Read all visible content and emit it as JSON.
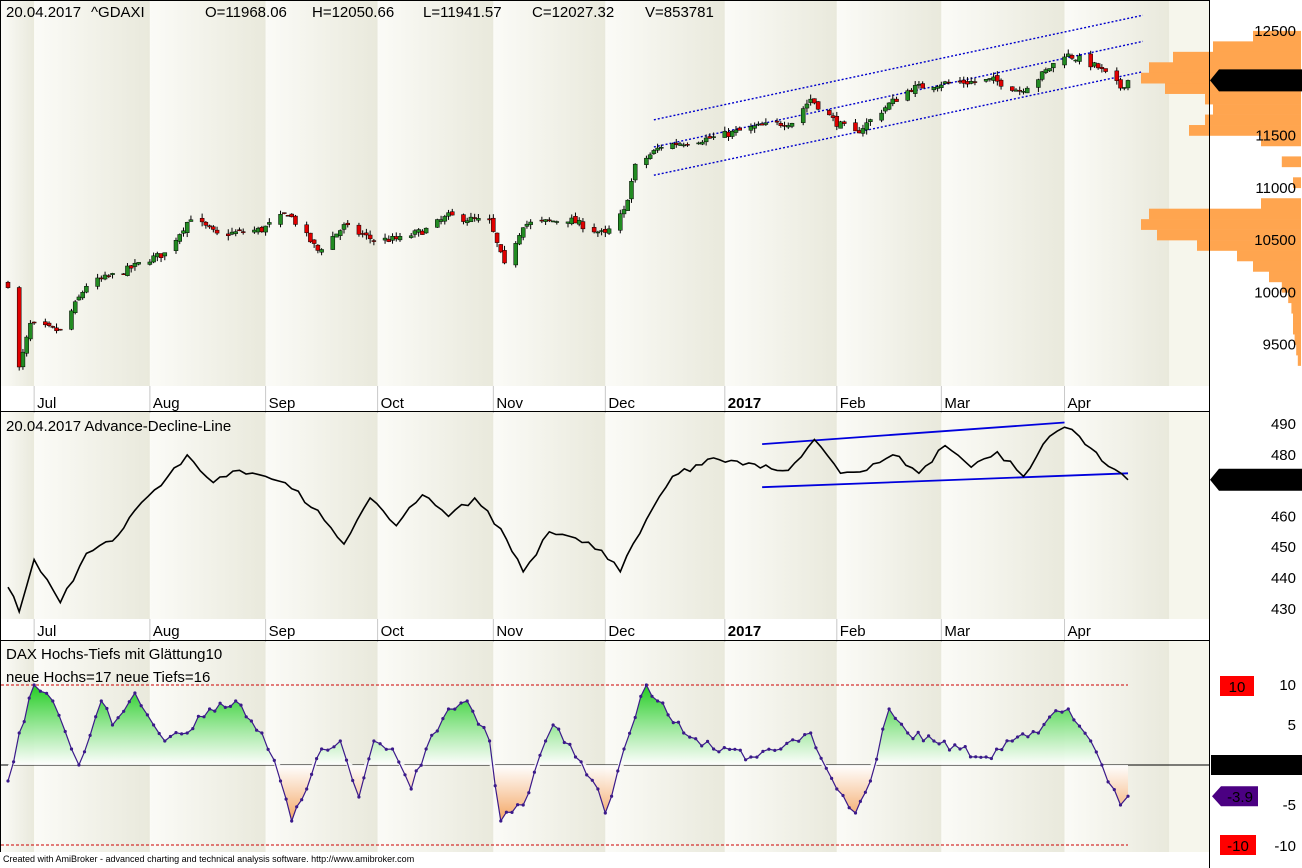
{
  "price_panel": {
    "header": {
      "date": "20.04.2017",
      "symbol": "^GDAXI",
      "open": "O=11968.06",
      "high": "H=12050.66",
      "low": "L=11941.57",
      "close": "C=12027.32",
      "volume": "V=853781"
    },
    "last_value_label": "12027.3",
    "y_ticks": [
      "12500",
      "12000",
      "11500",
      "11000",
      "10500",
      "10000",
      "9500"
    ]
  },
  "ad_panel": {
    "header": "20.04.2017 Advance-Decline-Line",
    "last_value_label": "471.906",
    "y_ticks": [
      "490",
      "480",
      "470",
      "460",
      "450",
      "440",
      "430"
    ]
  },
  "hl_panel": {
    "title": "DAX Hochs-Tiefs mit Glättung10",
    "counts": "neue Hochs=17   neue Tiefs=16",
    "y_ticks": [
      "10",
      "5",
      "0",
      "-5",
      "-10"
    ],
    "upper_label": "10",
    "zero_label": "0.00000",
    "last_value_label": "-3.9",
    "lower_label": "-10"
  },
  "months": [
    "Jul",
    "Aug",
    "Sep",
    "Oct",
    "Nov",
    "Dec",
    "2017",
    "Feb",
    "Mar",
    "Apr"
  ],
  "footer": "Created with AmiBroker - advanced charting and technical analysis software. http://www.amibroker.com",
  "colors": {
    "bull_candle": "#228b22",
    "bear_candle": "#e00000",
    "channel": "#0000cc",
    "volume_profile": "#ffa54f",
    "ad_line": "#000000",
    "ad_channel": "#0000dd",
    "osc_line": "#3b1a8a",
    "osc_pos": "#22cc22",
    "osc_neg": "#f4a460",
    "label_red": "#ff0000",
    "label_purple": "#4b0082"
  },
  "chart_data": [
    {
      "type": "candlestick",
      "title": "20.04.2017 ^GDAXI",
      "x_labels": [
        "Jul",
        "Aug",
        "Sep",
        "Oct",
        "Nov",
        "Dec",
        "2017",
        "Feb",
        "Mar",
        "Apr"
      ],
      "ylim": [
        9200,
        12700
      ],
      "last_close": 12027.32,
      "close_path": [
        [
          "2016-06-24",
          10080
        ],
        [
          "2016-06-27",
          9270
        ],
        [
          "2016-06-30",
          9690
        ],
        [
          "2016-07-08",
          9630
        ],
        [
          "2016-07-15",
          10070
        ],
        [
          "2016-07-25",
          10200
        ],
        [
          "2016-08-01",
          10320
        ],
        [
          "2016-08-05",
          10370
        ],
        [
          "2016-08-12",
          10720
        ],
        [
          "2016-08-19",
          10550
        ],
        [
          "2016-08-31",
          10600
        ],
        [
          "2016-09-07",
          10760
        ],
        [
          "2016-09-15",
          10400
        ],
        [
          "2016-09-22",
          10630
        ],
        [
          "2016-09-30",
          10500
        ],
        [
          "2016-10-07",
          10510
        ],
        [
          "2016-10-14",
          10600
        ],
        [
          "2016-10-20",
          10730
        ],
        [
          "2016-10-31",
          10670
        ],
        [
          "2016-11-04",
          10250
        ],
        [
          "2016-11-09",
          10650
        ],
        [
          "2016-11-21",
          10700
        ],
        [
          "2016-12-01",
          10550
        ],
        [
          "2016-12-06",
          10770
        ],
        [
          "2016-12-09",
          11200
        ],
        [
          "2016-12-16",
          11400
        ],
        [
          "2016-12-30",
          11480
        ],
        [
          "2017-01-10",
          11580
        ],
        [
          "2017-01-20",
          11630
        ],
        [
          "2017-01-25",
          11850
        ],
        [
          "2017-02-01",
          11620
        ],
        [
          "2017-02-06",
          11520
        ],
        [
          "2017-02-15",
          11800
        ],
        [
          "2017-02-21",
          11950
        ],
        [
          "2017-03-01",
          12000
        ],
        [
          "2017-03-08",
          12010
        ],
        [
          "2017-03-15",
          12030
        ],
        [
          "2017-03-22",
          11930
        ],
        [
          "2017-03-27",
          12050
        ],
        [
          "2017-04-03",
          12280
        ],
        [
          "2017-04-07",
          12230
        ],
        [
          "2017-04-12",
          12150
        ],
        [
          "2017-04-18",
          11960
        ],
        [
          "2017-04-20",
          12027.32
        ]
      ],
      "channel": {
        "upper": [
          [
            "2016-12-14",
            11650
          ],
          [
            "2017-04-24",
            12650
          ]
        ],
        "middle": [
          [
            "2016-12-14",
            11390
          ],
          [
            "2017-04-24",
            12400
          ]
        ],
        "lower": [
          [
            "2016-12-14",
            11120
          ],
          [
            "2017-04-24",
            12110
          ]
        ]
      },
      "volume_profile": [
        [
          12450,
          0.3
        ],
        [
          12350,
          0.55
        ],
        [
          12250,
          0.8
        ],
        [
          12150,
          0.95
        ],
        [
          12050,
          1.0
        ],
        [
          11950,
          0.85
        ],
        [
          11850,
          0.6
        ],
        [
          11750,
          0.55
        ],
        [
          11650,
          0.6
        ],
        [
          11550,
          0.7
        ],
        [
          11450,
          0.25
        ],
        [
          11250,
          0.12
        ],
        [
          11050,
          0.05
        ],
        [
          10850,
          0.25
        ],
        [
          10750,
          0.95
        ],
        [
          10650,
          1.0
        ],
        [
          10550,
          0.9
        ],
        [
          10450,
          0.65
        ],
        [
          10350,
          0.4
        ],
        [
          10250,
          0.3
        ],
        [
          10150,
          0.2
        ],
        [
          10050,
          0.12
        ],
        [
          9950,
          0.08
        ],
        [
          9850,
          0.06
        ],
        [
          9750,
          0.05
        ],
        [
          9650,
          0.05
        ],
        [
          9550,
          0.04
        ],
        [
          9450,
          0.03
        ],
        [
          9350,
          0.02
        ]
      ]
    },
    {
      "type": "line",
      "title": "20.04.2017 Advance-Decline-Line",
      "ylim": [
        427,
        491
      ],
      "last_value": 471.906,
      "series": [
        {
          "values": [
            [
              "2016-06-24",
              437
            ],
            [
              "2016-06-27",
              429
            ],
            [
              "2016-07-01",
              446
            ],
            [
              "2016-07-08",
              432
            ],
            [
              "2016-07-15",
              448
            ],
            [
              "2016-07-22",
              452
            ],
            [
              "2016-07-28",
              462
            ],
            [
              "2016-08-04",
              470
            ],
            [
              "2016-08-11",
              480
            ],
            [
              "2016-08-18",
              471
            ],
            [
              "2016-08-25",
              475
            ],
            [
              "2016-09-01",
              473
            ],
            [
              "2016-09-08",
              469
            ],
            [
              "2016-09-15",
              462
            ],
            [
              "2016-09-22",
              451
            ],
            [
              "2016-09-29",
              466
            ],
            [
              "2016-10-06",
              457
            ],
            [
              "2016-10-13",
              467
            ],
            [
              "2016-10-20",
              460
            ],
            [
              "2016-10-27",
              466
            ],
            [
              "2016-11-03",
              456
            ],
            [
              "2016-11-09",
              442
            ],
            [
              "2016-11-16",
              455
            ],
            [
              "2016-11-23",
              453
            ],
            [
              "2016-11-30",
              449
            ],
            [
              "2016-12-05",
              442
            ],
            [
              "2016-12-12",
              459
            ],
            [
              "2016-12-19",
              473
            ],
            [
              "2016-12-30",
              479
            ],
            [
              "2017-01-10",
              477
            ],
            [
              "2017-01-19",
              475
            ],
            [
              "2017-01-26",
              485
            ],
            [
              "2017-02-02",
              474
            ],
            [
              "2017-02-09",
              475
            ],
            [
              "2017-02-16",
              480
            ],
            [
              "2017-02-23",
              474
            ],
            [
              "2017-03-02",
              483
            ],
            [
              "2017-03-09",
              476
            ],
            [
              "2017-03-16",
              481
            ],
            [
              "2017-03-23",
              473
            ],
            [
              "2017-03-30",
              486
            ],
            [
              "2017-04-03",
              489
            ],
            [
              "2017-04-07",
              486
            ],
            [
              "2017-04-13",
              478
            ],
            [
              "2017-04-20",
              471.906
            ]
          ]
        }
      ],
      "channel": {
        "upper": [
          [
            "2017-01-12",
            483.5
          ],
          [
            "2017-04-03",
            490.5
          ]
        ],
        "lower": [
          [
            "2017-01-12",
            469.5
          ],
          [
            "2017-04-20",
            474
          ]
        ]
      }
    },
    {
      "type": "area",
      "title": "DAX Hochs-Tiefs mit Glättung10",
      "ylim": [
        -10.5,
        12
      ],
      "reference_lines": [
        10,
        0,
        -10
      ],
      "last_value": -3.9,
      "series": [
        {
          "values": [
            [
              "2016-06-24",
              -2
            ],
            [
              "2016-06-27",
              4
            ],
            [
              "2016-07-01",
              10
            ],
            [
              "2016-07-06",
              8
            ],
            [
              "2016-07-11",
              2
            ],
            [
              "2016-07-13",
              0
            ],
            [
              "2016-07-19",
              8
            ],
            [
              "2016-07-22",
              5
            ],
            [
              "2016-07-28",
              9
            ],
            [
              "2016-08-02",
              5
            ],
            [
              "2016-08-05",
              3
            ],
            [
              "2016-08-11",
              4
            ],
            [
              "2016-08-17",
              7
            ],
            [
              "2016-08-24",
              8
            ],
            [
              "2016-08-31",
              4
            ],
            [
              "2016-09-05",
              -2
            ],
            [
              "2016-09-08",
              -7
            ],
            [
              "2016-09-12",
              -3
            ],
            [
              "2016-09-16",
              2
            ],
            [
              "2016-09-21",
              3
            ],
            [
              "2016-09-26",
              -4
            ],
            [
              "2016-09-30",
              3
            ],
            [
              "2016-10-05",
              2
            ],
            [
              "2016-10-10",
              -3
            ],
            [
              "2016-10-14",
              2
            ],
            [
              "2016-10-20",
              7
            ],
            [
              "2016-10-25",
              8
            ],
            [
              "2016-10-31",
              3
            ],
            [
              "2016-11-03",
              -7
            ],
            [
              "2016-11-09",
              -5
            ],
            [
              "2016-11-15",
              3
            ],
            [
              "2016-11-17",
              5
            ],
            [
              "2016-11-23",
              1
            ],
            [
              "2016-11-29",
              -3
            ],
            [
              "2016-12-01",
              -6
            ],
            [
              "2016-12-06",
              2
            ],
            [
              "2016-12-12",
              10
            ],
            [
              "2016-12-15",
              8
            ],
            [
              "2016-12-22",
              4
            ],
            [
              "2016-12-30",
              2
            ],
            [
              "2017-01-09",
              1
            ],
            [
              "2017-01-17",
              2
            ],
            [
              "2017-01-25",
              4
            ],
            [
              "2017-02-01",
              -3
            ],
            [
              "2017-02-06",
              -6
            ],
            [
              "2017-02-10",
              -2
            ],
            [
              "2017-02-15",
              7
            ],
            [
              "2017-02-20",
              4
            ],
            [
              "2017-02-27",
              3
            ],
            [
              "2017-03-06",
              2
            ],
            [
              "2017-03-13",
              1
            ],
            [
              "2017-03-20",
              3
            ],
            [
              "2017-03-27",
              4
            ],
            [
              "2017-03-30",
              6
            ],
            [
              "2017-04-04",
              7
            ],
            [
              "2017-04-10",
              3
            ],
            [
              "2017-04-13",
              0
            ],
            [
              "2017-04-18",
              -5
            ],
            [
              "2017-04-20",
              -3.9
            ]
          ]
        }
      ]
    }
  ]
}
